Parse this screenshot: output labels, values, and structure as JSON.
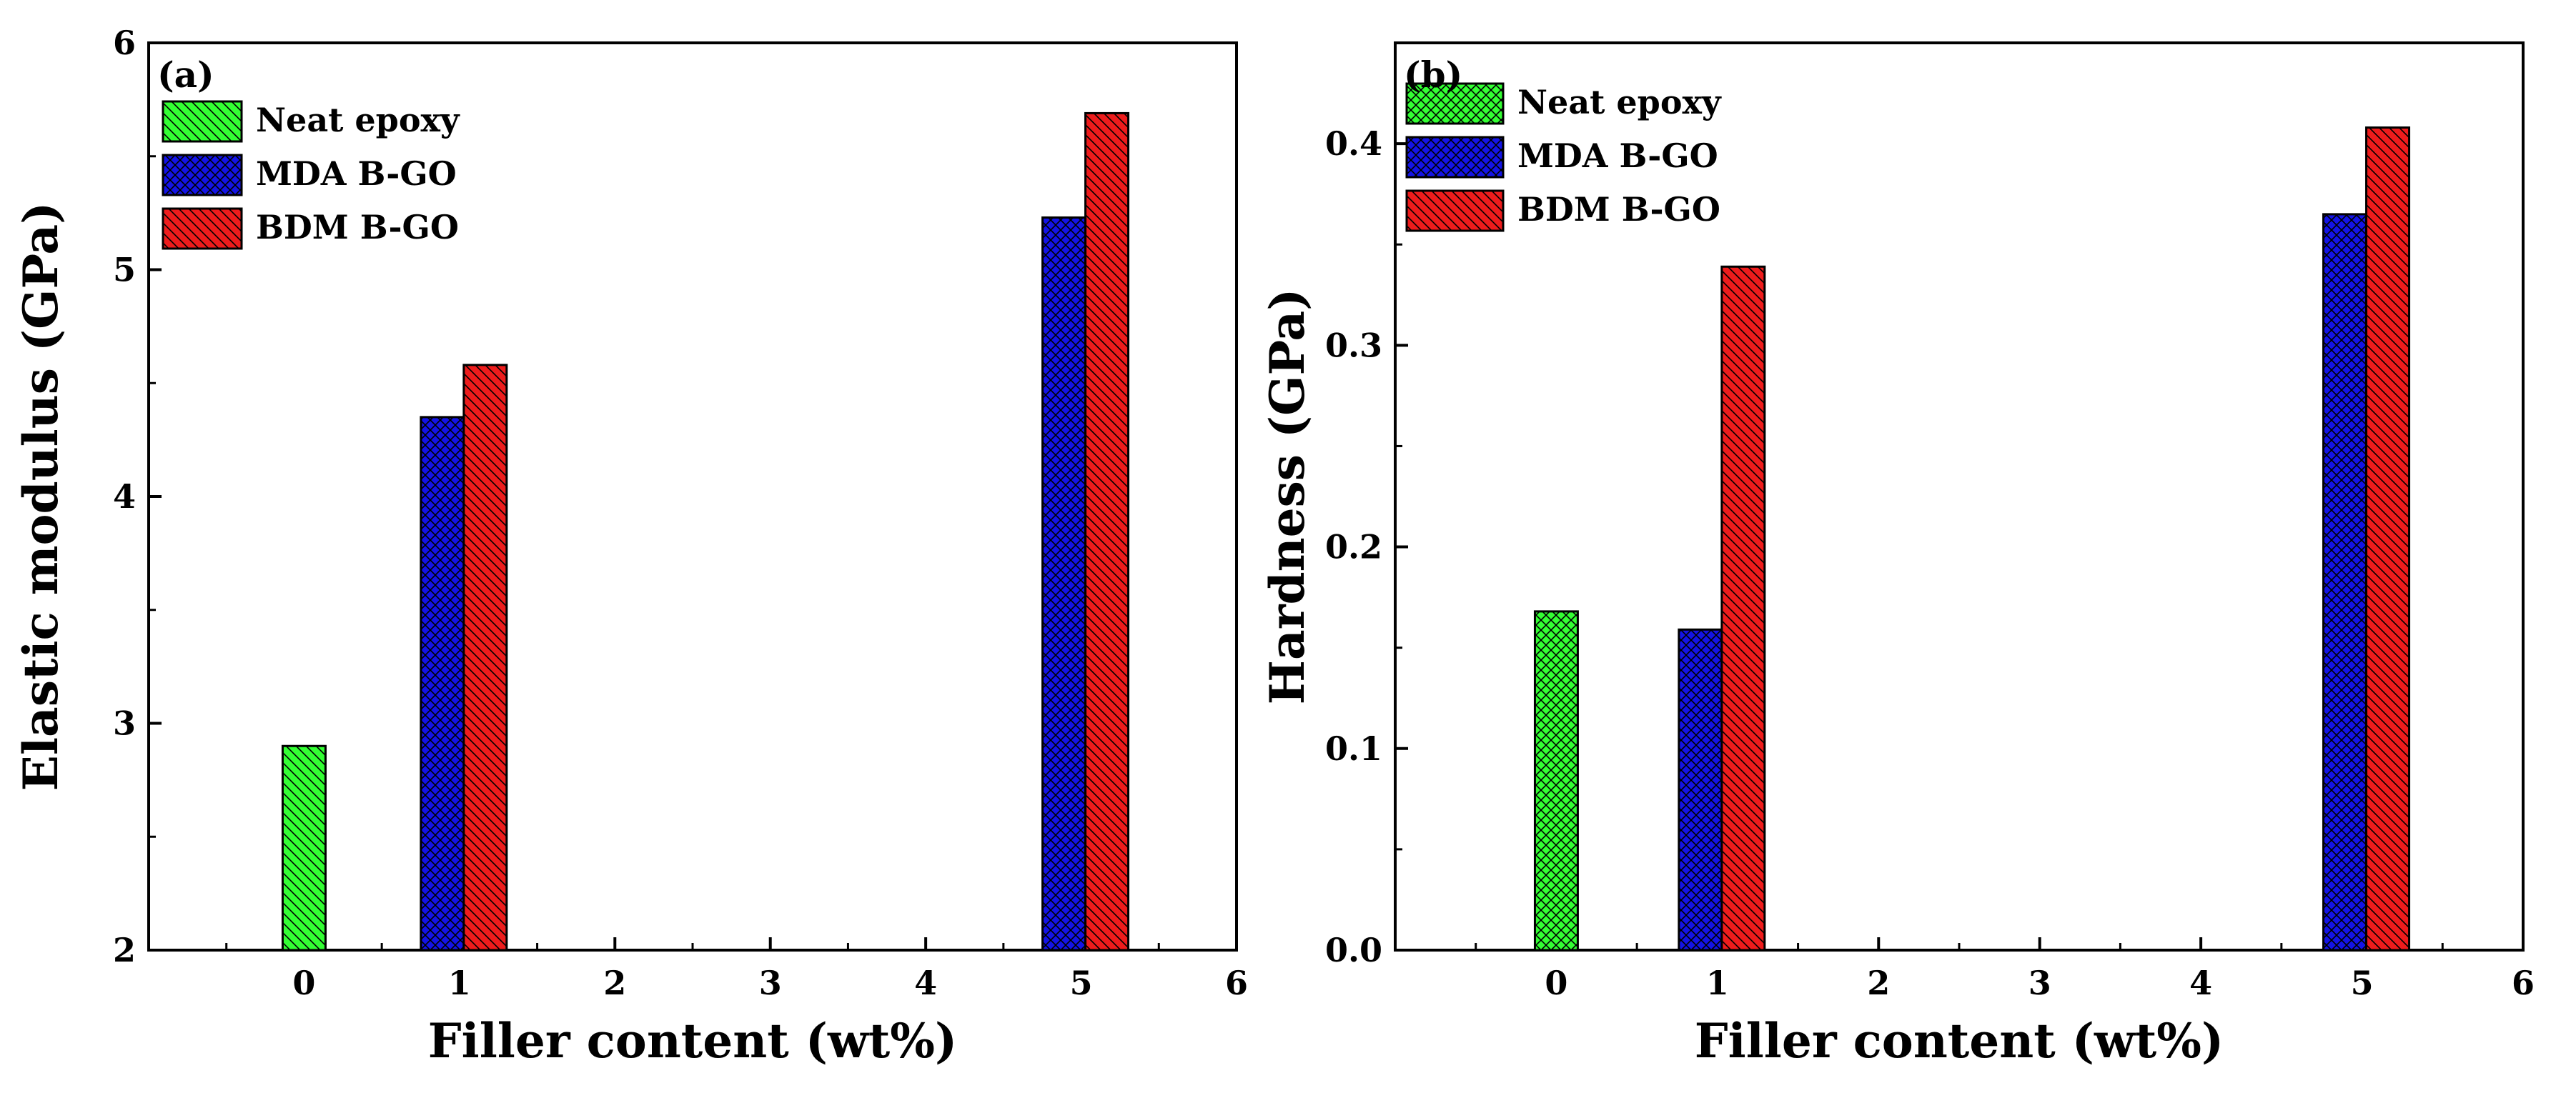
{
  "chart_data": [
    {
      "panel": "(a)",
      "type": "bar",
      "title": "",
      "xlabel": "Filler content (wt%)",
      "ylabel": "Elastic modulus (GPa)",
      "xlim": [
        -1,
        6
      ],
      "ylim": [
        2,
        6
      ],
      "xticks": [
        0,
        1,
        2,
        3,
        4,
        5,
        6
      ],
      "yticks": [
        2,
        3,
        4,
        5,
        6
      ],
      "legend_position": "top-left",
      "series": [
        {
          "name": "Neat epoxy",
          "color": "#33ff33",
          "pattern": "diag-left",
          "points": [
            {
              "x": 0,
              "value": 2.9
            }
          ]
        },
        {
          "name": "MDA B-GO",
          "color": "#1414e6",
          "pattern": "cross",
          "points": [
            {
              "x": 1,
              "value": 4.35
            },
            {
              "x": 5,
              "value": 5.23
            }
          ]
        },
        {
          "name": "BDM B-GO",
          "color": "#ee1c1c",
          "pattern": "diag-left",
          "points": [
            {
              "x": 1,
              "value": 4.58
            },
            {
              "x": 5,
              "value": 5.69
            }
          ]
        }
      ]
    },
    {
      "panel": "(b)",
      "type": "bar",
      "title": "",
      "xlabel": "Filler content (wt%)",
      "ylabel": "Hardness (GPa)",
      "xlim": [
        -1,
        6
      ],
      "ylim": [
        0,
        0.45
      ],
      "xticks": [
        0,
        1,
        2,
        3,
        4,
        5,
        6
      ],
      "yticks": [
        0.0,
        0.1,
        0.2,
        0.3,
        0.4
      ],
      "legend_position": "top-left",
      "series": [
        {
          "name": "Neat epoxy",
          "color": "#33ff33",
          "pattern": "cross",
          "points": [
            {
              "x": 0,
              "value": 0.168
            }
          ]
        },
        {
          "name": "MDA B-GO",
          "color": "#1414e6",
          "pattern": "cross",
          "points": [
            {
              "x": 1,
              "value": 0.159
            },
            {
              "x": 5,
              "value": 0.365
            }
          ]
        },
        {
          "name": "BDM B-GO",
          "color": "#ee1c1c",
          "pattern": "diag-left",
          "points": [
            {
              "x": 1,
              "value": 0.339
            },
            {
              "x": 5,
              "value": 0.408
            }
          ]
        }
      ]
    }
  ]
}
